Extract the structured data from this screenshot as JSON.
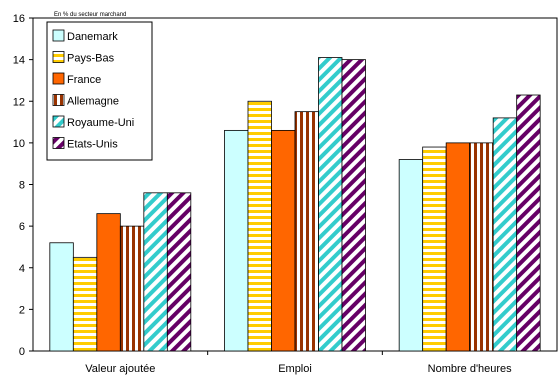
{
  "chart_data": {
    "type": "bar",
    "subtitle": "En % du secteur marchand",
    "categories": [
      "Valeur ajoutée",
      "Emploi",
      "Nombre d'heures"
    ],
    "series": [
      {
        "name": "Danemark",
        "values": [
          5.2,
          10.6,
          9.2
        ],
        "color": "#ccffff",
        "pattern": "solid"
      },
      {
        "name": "Pays-Bas",
        "values": [
          4.5,
          12.0,
          9.8
        ],
        "color": "#ffcc00",
        "pattern": "horizontal-stripes"
      },
      {
        "name": "France",
        "values": [
          6.6,
          10.6,
          10.0
        ],
        "color": "#ff6600",
        "pattern": "solid"
      },
      {
        "name": "Allemagne",
        "values": [
          6.0,
          11.5,
          10.0
        ],
        "color": "#993300",
        "pattern": "vertical-stripes"
      },
      {
        "name": "Royaume-Uni",
        "values": [
          7.6,
          14.1,
          11.2
        ],
        "color": "#33cccc",
        "pattern": "diagonal-stripes"
      },
      {
        "name": "Etats-Unis",
        "values": [
          7.6,
          14.0,
          12.3
        ],
        "color": "#660066",
        "pattern": "diagonal-stripes"
      }
    ],
    "ylim": [
      0,
      16
    ],
    "yticks": [
      0,
      2,
      4,
      6,
      8,
      10,
      12,
      14,
      16
    ],
    "grid": false,
    "legend_position": "top-left"
  }
}
